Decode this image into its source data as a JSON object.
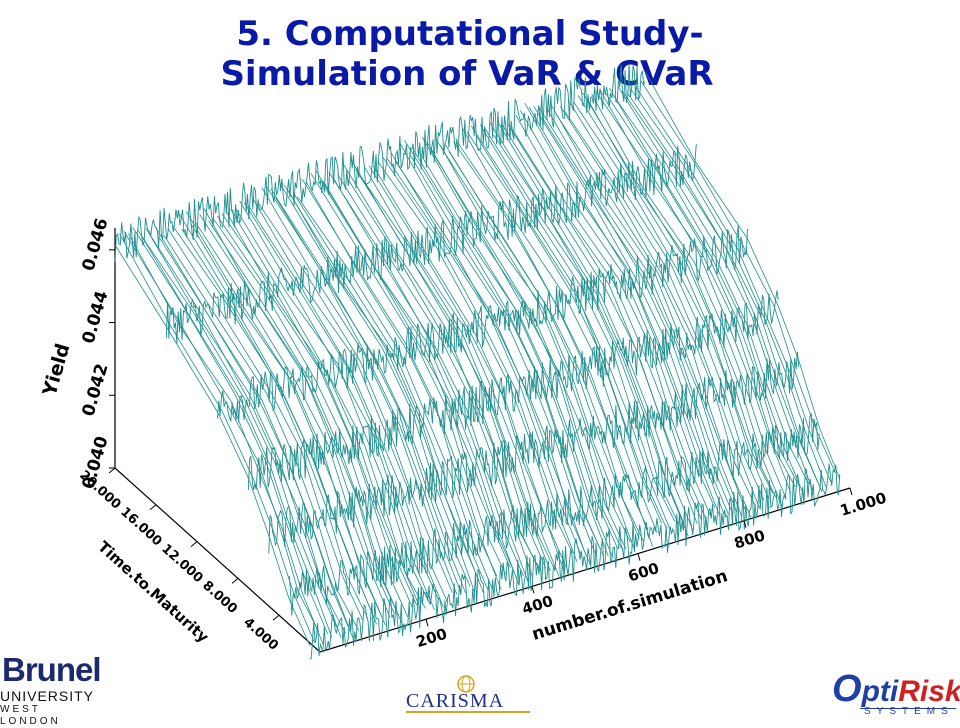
{
  "title": {
    "line1": "5. Computational Study-",
    "line2": "Simulation of VaR & CVaR"
  },
  "chart_data": {
    "type": "surface",
    "zlabel": "Yield",
    "xlabel": "number.of.simulation",
    "ylabel": "Time.to.Maturity",
    "z_ticks": [
      "0.040",
      "0.042",
      "0.044",
      "0.046"
    ],
    "x_ticks": [
      "200",
      "400",
      "600",
      "800",
      "1.000"
    ],
    "y_ticks": [
      "20.000",
      "16.000",
      "12.000",
      "8.000",
      "4.000"
    ],
    "zlim": [
      0.04,
      0.047
    ],
    "xlim": [
      0,
      1000
    ],
    "ylim": [
      0,
      20
    ],
    "color": "#1f8f8f",
    "n_simulations": 1000,
    "maturities": [
      1,
      3,
      5,
      7,
      10,
      15,
      20
    ],
    "yield_curve": {
      "1": 0.04,
      "3": 0.0408,
      "5": 0.042,
      "7": 0.0431,
      "10": 0.0442,
      "15": 0.0452,
      "20": 0.0462
    },
    "noise_amplitude": 0.0006
  },
  "logos": {
    "brunel": {
      "name": "Brunel",
      "line2": "UNIVERSITY",
      "line3": "WEST LONDON"
    },
    "carisma": {
      "name": "CARISMA"
    },
    "optirisk": {
      "o": "O",
      "pti": "pti",
      "risk": "Risk",
      "sub": "SYSTEMS"
    }
  }
}
